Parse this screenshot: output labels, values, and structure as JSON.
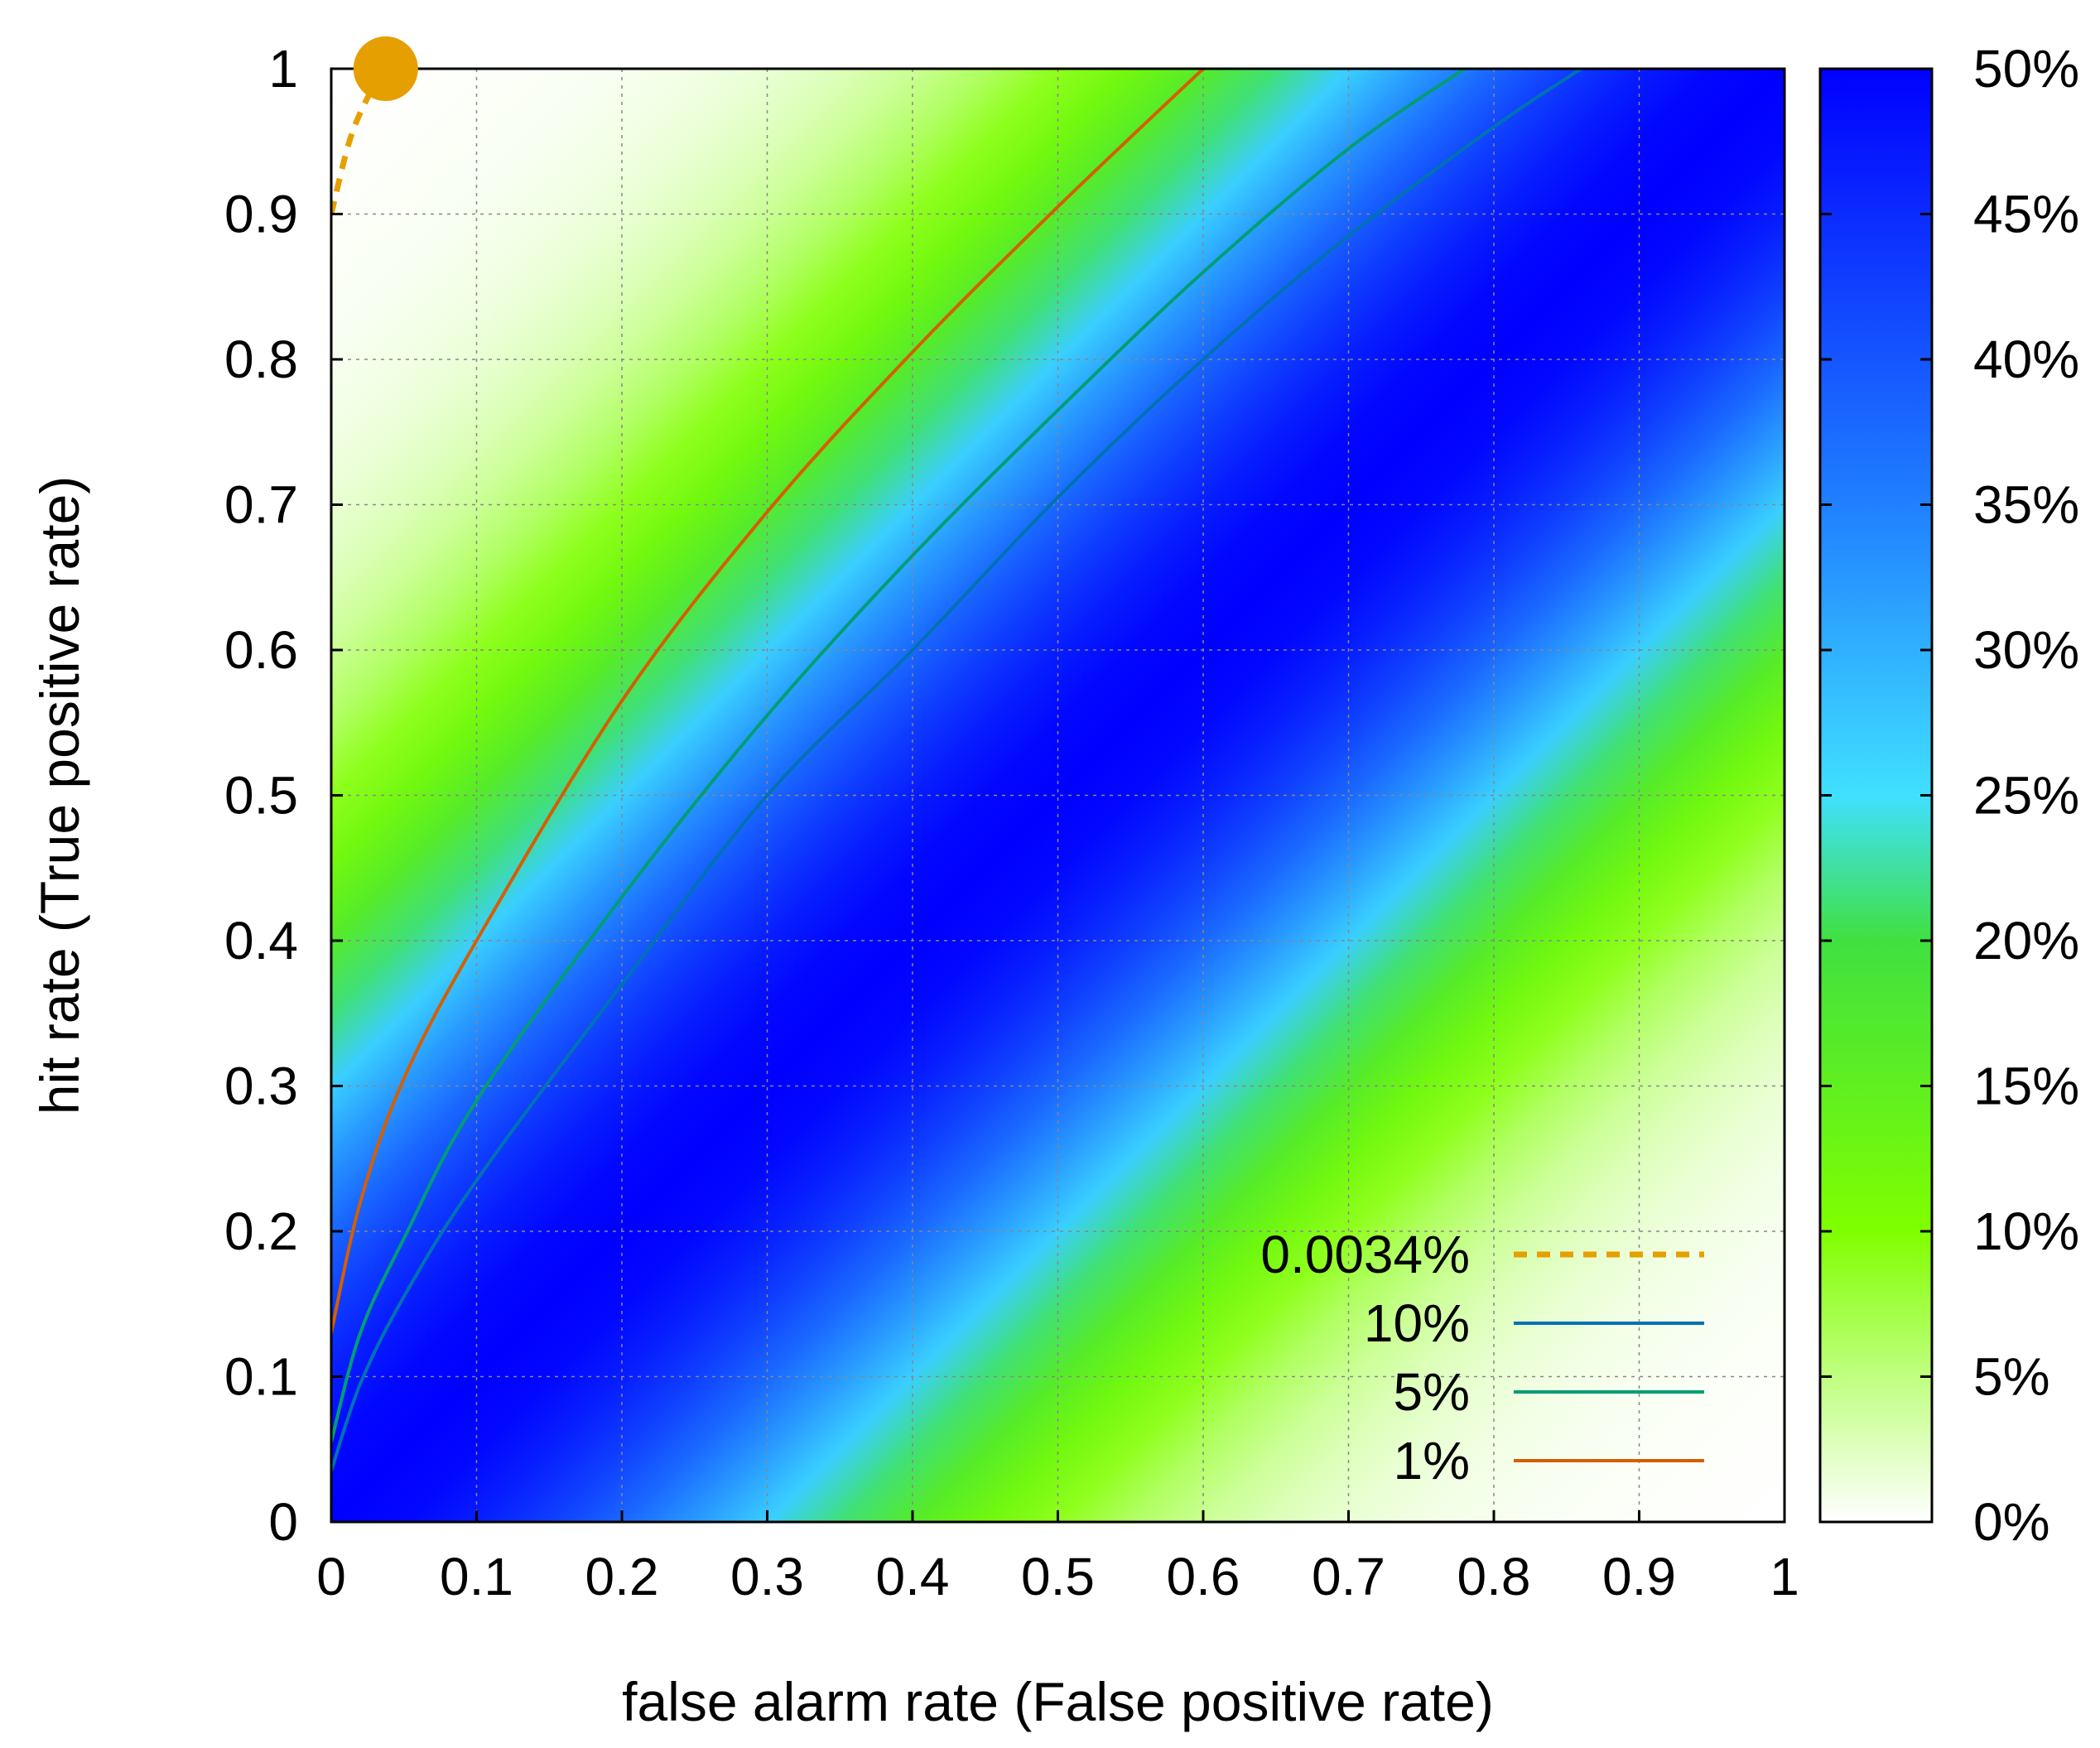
{
  "chart_data": {
    "type": "heatmap",
    "title": "",
    "xlabel": "false alarm rate (False positive rate)",
    "ylabel": "hit rate (True positive rate)",
    "xlim": [
      0,
      1
    ],
    "ylim": [
      0,
      1
    ],
    "x_ticks": [
      "0",
      "0.1",
      "0.2",
      "0.3",
      "0.4",
      "0.5",
      "0.6",
      "0.7",
      "0.8",
      "0.9",
      "1"
    ],
    "y_ticks": [
      "0",
      "0.1",
      "0.2",
      "0.3",
      "0.4",
      "0.5",
      "0.6",
      "0.7",
      "0.8",
      "0.9",
      "1"
    ],
    "grid": true,
    "legend_position": "bottom-right",
    "colorbar": {
      "min": 0,
      "max": 0.5,
      "tick_labels": [
        "0%",
        "5%",
        "10%",
        "15%",
        "20%",
        "25%",
        "30%",
        "35%",
        "40%",
        "45%",
        "50%"
      ],
      "palette": [
        {
          "v": 0.0,
          "color": "#ffffff"
        },
        {
          "v": 0.1,
          "color": "#80ff00"
        },
        {
          "v": 0.2,
          "color": "#40e040"
        },
        {
          "v": 0.25,
          "color": "#40e0ff"
        },
        {
          "v": 0.35,
          "color": "#2080ff"
        },
        {
          "v": 0.5,
          "color": "#0000ff"
        }
      ]
    },
    "point": {
      "x": 0.0375,
      "y": 1.0,
      "color": "#e69f00"
    },
    "series": [
      {
        "name": "0.0034%",
        "color": "#e69f00",
        "dash": true,
        "points": [
          [
            0.0,
            0.9
          ],
          [
            0.0125,
            0.95
          ],
          [
            0.025,
            0.98
          ],
          [
            0.0375,
            1.0
          ]
        ]
      },
      {
        "name": "10%",
        "color": "#0072b2",
        "dash": false,
        "points": [
          [
            0.0,
            0.035
          ],
          [
            0.02,
            0.095
          ],
          [
            0.05,
            0.155
          ],
          [
            0.1,
            0.235
          ],
          [
            0.2,
            0.37
          ],
          [
            0.3,
            0.5
          ],
          [
            0.4,
            0.6
          ],
          [
            0.5,
            0.705
          ],
          [
            0.6,
            0.8
          ],
          [
            0.7,
            0.885
          ],
          [
            0.8,
            0.96
          ],
          [
            0.86,
            1.0
          ]
        ]
      },
      {
        "name": "5%",
        "color": "#009e73",
        "dash": false,
        "points": [
          [
            0.0,
            0.055
          ],
          [
            0.02,
            0.13
          ],
          [
            0.05,
            0.195
          ],
          [
            0.1,
            0.29
          ],
          [
            0.2,
            0.43
          ],
          [
            0.3,
            0.555
          ],
          [
            0.4,
            0.665
          ],
          [
            0.5,
            0.765
          ],
          [
            0.6,
            0.86
          ],
          [
            0.7,
            0.945
          ],
          [
            0.78,
            1.0
          ]
        ]
      },
      {
        "name": "1%",
        "color": "#d55e00",
        "dash": false,
        "points": [
          [
            0.0,
            0.13
          ],
          [
            0.02,
            0.22
          ],
          [
            0.05,
            0.305
          ],
          [
            0.1,
            0.4
          ],
          [
            0.2,
            0.565
          ],
          [
            0.3,
            0.695
          ],
          [
            0.4,
            0.805
          ],
          [
            0.5,
            0.905
          ],
          [
            0.6,
            1.0
          ]
        ]
      }
    ]
  }
}
